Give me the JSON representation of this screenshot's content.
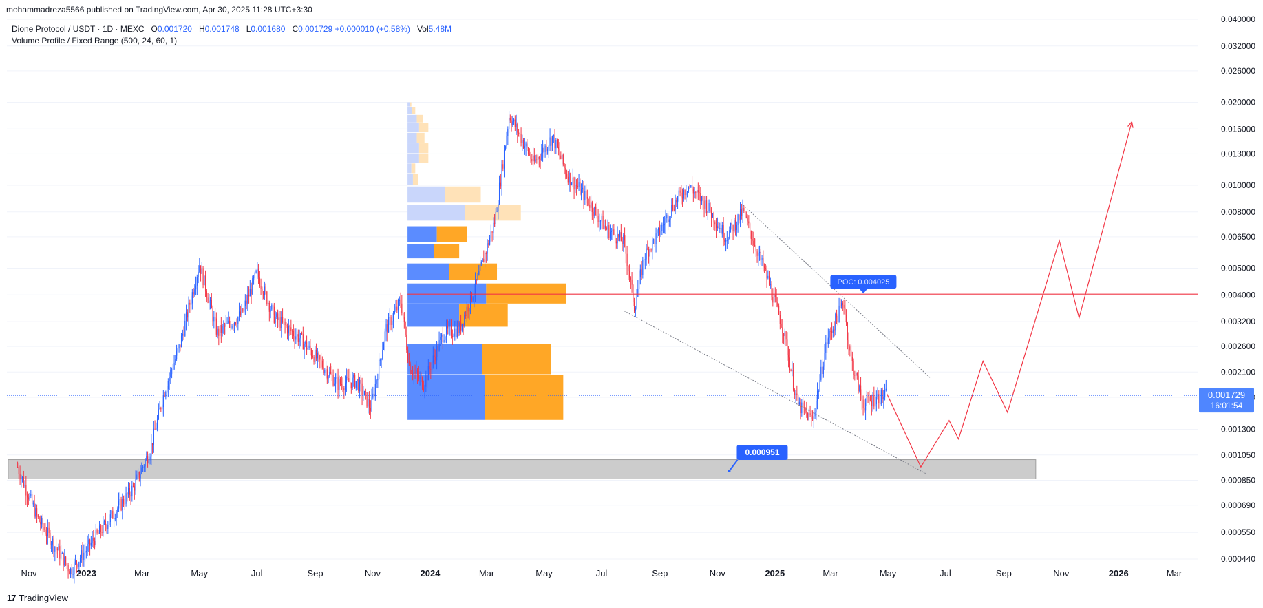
{
  "publisher_line": "mohammadreza5566 published on TradingView.com, Apr 30, 2025 11:28 UTC+3:30",
  "legend": {
    "symbol": "Dione Protocol / USDT · 1D · MEXC",
    "o_label": "O",
    "o_value": "0.001720",
    "h_label": "H",
    "h_value": "0.001748",
    "l_label": "L",
    "l_value": "0.001680",
    "c_label": "C",
    "c_value": "0.001729",
    "change": "+0.000010 (+0.58%)",
    "vol_label": "Vol",
    "vol_value": "5.48M",
    "indicator": "Volume Profile / Fixed Range (500, 24, 60, 1)"
  },
  "footer": {
    "logo": "17",
    "brand": "TradingView"
  },
  "colors": {
    "up": "#2962ff",
    "down": "#f23645",
    "vp_up": "#5b8cff",
    "vp_down": "#ffa726",
    "poc_line": "#f23645",
    "support_zone": "#cccccc",
    "projection": "#f23645",
    "price_label_bg": "#2962ff",
    "grid": "#f0f3fa"
  },
  "chart_data": {
    "type": "line",
    "y_scale": "log",
    "y_ticks": [
      "0.040000",
      "0.032000",
      "0.026000",
      "0.020000",
      "0.016000",
      "0.013000",
      "0.010000",
      "0.008000",
      "0.006500",
      "0.005000",
      "0.004000",
      "0.003200",
      "0.002600",
      "0.002100",
      "0.001700",
      "0.001300",
      "0.001050",
      "0.000850",
      "0.000690",
      "0.000550",
      "0.000440"
    ],
    "x_ticks": [
      "Nov",
      "2023",
      "Mar",
      "May",
      "Jul",
      "Sep",
      "Nov",
      "2024",
      "Mar",
      "May",
      "Jul",
      "Sep",
      "Nov",
      "2025",
      "Mar",
      "May",
      "Jul",
      "Sep",
      "Nov",
      "2026",
      "Mar"
    ],
    "price_series": {
      "name": "Dione Protocol / USDT",
      "x": [
        "2022-10-20",
        "2022-11-10",
        "2022-12-15",
        "2023-02-20",
        "2023-03-10",
        "2023-03-25",
        "2023-04-10",
        "2023-05-01",
        "2023-05-20",
        "2023-06-15",
        "2023-07-01",
        "2023-07-20",
        "2023-08-15",
        "2023-09-05",
        "2023-09-25",
        "2023-10-15",
        "2023-10-30",
        "2023-11-15",
        "2023-12-01",
        "2023-12-10",
        "2023-12-25",
        "2024-01-15",
        "2024-02-01",
        "2024-02-20",
        "2024-03-10",
        "2024-03-25",
        "2024-04-06",
        "2024-04-20",
        "2024-05-10",
        "2024-05-25",
        "2024-06-15",
        "2024-07-05",
        "2024-07-25",
        "2024-08-05",
        "2024-08-15",
        "2024-09-01",
        "2024-09-15",
        "2024-10-01",
        "2024-10-20",
        "2024-11-10",
        "2024-11-28",
        "2024-12-10",
        "2024-12-25",
        "2025-01-10",
        "2025-01-25",
        "2025-02-10",
        "2025-02-25",
        "2025-03-15",
        "2025-03-22",
        "2025-04-05",
        "2025-04-20",
        "2025-04-30"
      ],
      "close": [
        0.00095,
        0.00062,
        0.0004,
        0.0008,
        0.0011,
        0.0018,
        0.0026,
        0.0052,
        0.0029,
        0.0034,
        0.0048,
        0.0033,
        0.0028,
        0.0023,
        0.0019,
        0.00195,
        0.00155,
        0.003,
        0.0038,
        0.0022,
        0.0019,
        0.0029,
        0.003,
        0.0045,
        0.0075,
        0.018,
        0.015,
        0.012,
        0.015,
        0.011,
        0.009,
        0.007,
        0.0062,
        0.0036,
        0.0055,
        0.0068,
        0.0085,
        0.01,
        0.0085,
        0.0065,
        0.008,
        0.0062,
        0.0045,
        0.003,
        0.0016,
        0.0014,
        0.0027,
        0.0038,
        0.0024,
        0.0016,
        0.0017,
        0.001729
      ]
    },
    "volume_profile": {
      "rows_value_area": [
        {
          "price_low": 0.0014,
          "price_high": 0.00205,
          "up": 1.0,
          "down": 1.02
        },
        {
          "price_low": 0.00205,
          "price_high": 0.00265,
          "up": 0.97,
          "down": 0.89
        },
        {
          "price_low": 0.00305,
          "price_high": 0.0037,
          "up": 0.67,
          "down": 0.63
        },
        {
          "price_low": 0.0037,
          "price_high": 0.0044,
          "up": 1.02,
          "down": 1.04
        },
        {
          "price_low": 0.0045,
          "price_high": 0.0052,
          "up": 0.54,
          "down": 0.62
        },
        {
          "price_low": 0.0054,
          "price_high": 0.0061,
          "up": 0.34,
          "down": 0.33
        },
        {
          "price_low": 0.0062,
          "price_high": 0.0071,
          "up": 0.38,
          "down": 0.39
        }
      ],
      "rows_outside": [
        {
          "price_low": 0.0074,
          "price_high": 0.0085,
          "up": 0.74,
          "down": 0.73
        },
        {
          "price_low": 0.0086,
          "price_high": 0.0099,
          "up": 0.49,
          "down": 0.46
        },
        {
          "price_low": 0.01,
          "price_high": 0.011,
          "up": 0.07,
          "down": 0.07
        },
        {
          "price_low": 0.011,
          "price_high": 0.012,
          "up": 0.05,
          "down": 0.05
        },
        {
          "price_low": 0.012,
          "price_high": 0.013,
          "up": 0.15,
          "down": 0.12
        },
        {
          "price_low": 0.013,
          "price_high": 0.0142,
          "up": 0.15,
          "down": 0.12
        },
        {
          "price_low": 0.0142,
          "price_high": 0.0155,
          "up": 0.12,
          "down": 0.1
        },
        {
          "price_low": 0.0155,
          "price_high": 0.0168,
          "up": 0.15,
          "down": 0.12
        },
        {
          "price_low": 0.0168,
          "price_high": 0.018,
          "up": 0.12,
          "down": 0.08
        },
        {
          "price_low": 0.018,
          "price_high": 0.0192,
          "up": 0.06,
          "down": 0.04
        },
        {
          "price_low": 0.0192,
          "price_high": 0.02,
          "up": 0.03,
          "down": 0.02
        }
      ],
      "poc_price": 0.004025,
      "start": "2023-12-08",
      "end": "2025-04-30"
    },
    "poc_label": "POC: 0.004025",
    "poc_label_date": "2025-04-05",
    "support_zone": {
      "price_low": 0.00086,
      "price_high": 0.00101,
      "start": "2022-10-10",
      "end": "2025-10-05"
    },
    "support_label": "0.000951",
    "support_label_date": "2024-11-15",
    "trend_lines": [
      {
        "x": [
          "2024-07-25",
          "2025-06-10"
        ],
        "y": [
          0.0035,
          0.0009
        ]
      },
      {
        "x": [
          "2024-11-28",
          "2025-06-15"
        ],
        "y": [
          0.0085,
          0.002
        ]
      }
    ],
    "projection": {
      "x": [
        "2025-04-30",
        "2025-06-05",
        "2025-07-05",
        "2025-07-15",
        "2025-08-10",
        "2025-09-05",
        "2025-10-30",
        "2025-11-20",
        "2026-01-15"
      ],
      "y": [
        0.00175,
        0.00095,
        0.0014,
        0.0012,
        0.0023,
        0.0015,
        0.0063,
        0.0033,
        0.017
      ]
    },
    "last_price_label": "0.001729",
    "last_price": 0.001729,
    "countdown": "16:01:54"
  }
}
